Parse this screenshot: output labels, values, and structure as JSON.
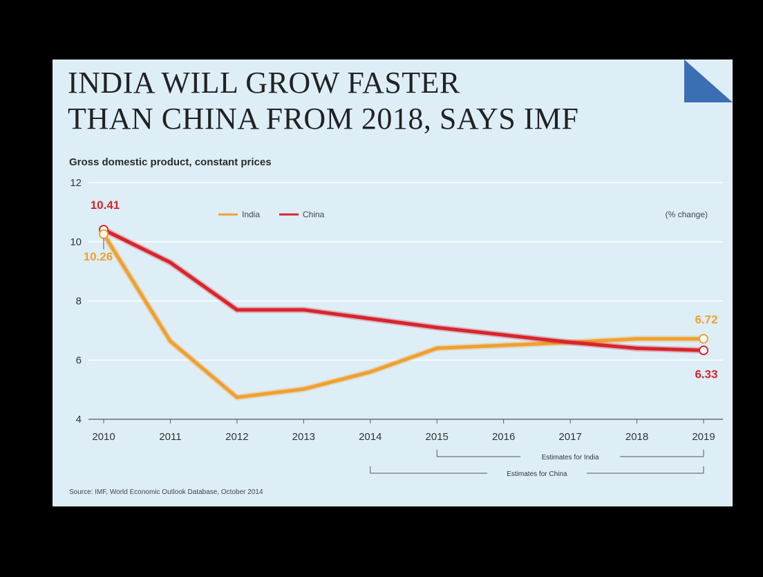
{
  "colors": {
    "background": "#000000",
    "panel": "#ddeef7",
    "corner": "#3c6eb4",
    "india": "#f0a030",
    "china": "#d8242c",
    "grid": "#ffffff",
    "axis": "#555555"
  },
  "title_line1": "INDIA WILL GROW FASTER",
  "title_line2": "THAN CHINA FROM 2018, SAYS IMF",
  "subtitle": "Gross domestic product, constant prices",
  "unit": "(% change)",
  "source": "Source: IMF, World Economic Outlook Database, October 2014",
  "annotations": {
    "india_estimates": "Estimates for India",
    "china_estimates": "Estimates for China"
  },
  "chart_data": {
    "type": "line",
    "x": [
      "2010",
      "2011",
      "2012",
      "2013",
      "2014",
      "2015",
      "2016",
      "2017",
      "2018",
      "2019"
    ],
    "series": [
      {
        "name": "India",
        "color": "#f0a030",
        "values": [
          10.26,
          6.64,
          4.74,
          5.02,
          5.6,
          6.4,
          6.5,
          6.6,
          6.72,
          6.72
        ]
      },
      {
        "name": "China",
        "color": "#d8242c",
        "values": [
          10.41,
          9.3,
          7.7,
          7.7,
          7.4,
          7.1,
          6.85,
          6.6,
          6.4,
          6.33
        ]
      }
    ],
    "data_labels": [
      {
        "series": "China",
        "x": "2010",
        "text": "10.41"
      },
      {
        "series": "India",
        "x": "2010",
        "text": "10.26"
      },
      {
        "series": "India",
        "x": "2019",
        "text": "6.72"
      },
      {
        "series": "China",
        "x": "2019",
        "text": "6.33"
      }
    ],
    "y_ticks": [
      4,
      6,
      8,
      10,
      12
    ],
    "ylim": [
      4,
      12
    ],
    "grid": true,
    "legend_placement": "top-center",
    "estimates": [
      {
        "label": "Estimates for India",
        "from": "2015",
        "to": "2019"
      },
      {
        "label": "Estimates for China",
        "from": "2014",
        "to": "2019"
      }
    ]
  }
}
